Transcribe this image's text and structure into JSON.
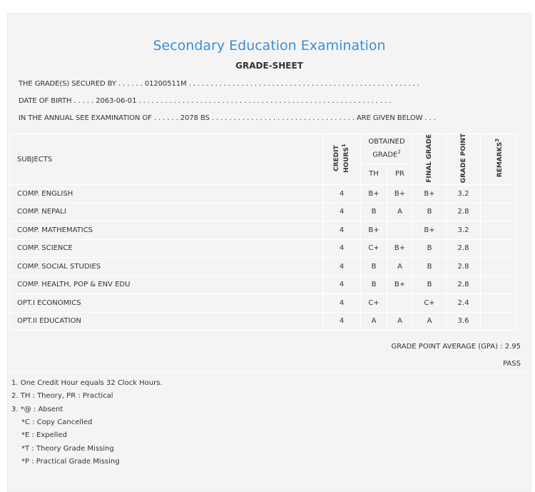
{
  "title": "Secondary Education Examination",
  "subtitle": "GRADE-SHEET",
  "info": {
    "line1": "THE GRADE(S) SECURED BY . . . . . . 01200511M . . . . . . . . . . . . . . . . . . . . . . . . . . . . . . . . . . . . . . . . . . . . . . . . . . . . .",
    "line2": "DATE OF BIRTH . . . . . 2063-06-01 . . . . . . . . . . . . . . . . . . . . . . . . . . . . . . . . . . . . . . . . . . . . . . . . . . . . . . . . . .",
    "line3": "IN THE ANNUAL SEE EXAMINATION OF . . . . . . 2078 BS . . . . . . . . . . . . . . . . . . . . . . . . . . . . . . . . . ARE GIVEN BELOW . . ."
  },
  "table": {
    "headers": {
      "subjects": "SUBJECTS",
      "credit": "CREDIT HOURS",
      "credit_sup": "1",
      "obtained": "OBTAINED GRADE",
      "obtained_sup": "2",
      "th": "TH",
      "pr": "PR",
      "final": "FINAL GRADE",
      "point": "GRADE POINT",
      "remarks": "REMARKS",
      "remarks_sup": "3"
    },
    "rows": [
      {
        "subject": "COMP. ENGLISH",
        "credit": "4",
        "th": "B+",
        "pr": "B+",
        "final": "B+",
        "point": "3.2",
        "remarks": ""
      },
      {
        "subject": "COMP. NEPALI",
        "credit": "4",
        "th": "B",
        "pr": "A",
        "final": "B",
        "point": "2.8",
        "remarks": ""
      },
      {
        "subject": "COMP. MATHEMATICS",
        "credit": "4",
        "th": "B+",
        "pr": "",
        "final": "B+",
        "point": "3.2",
        "remarks": ""
      },
      {
        "subject": "COMP. SCIENCE",
        "credit": "4",
        "th": "C+",
        "pr": "B+",
        "final": "B",
        "point": "2.8",
        "remarks": ""
      },
      {
        "subject": "COMP. SOCIAL STUDIES",
        "credit": "4",
        "th": "B",
        "pr": "A",
        "final": "B",
        "point": "2.8",
        "remarks": ""
      },
      {
        "subject": "COMP. HEALTH, POP & ENV EDU",
        "credit": "4",
        "th": "B",
        "pr": "B+",
        "final": "B",
        "point": "2.8",
        "remarks": ""
      },
      {
        "subject": "OPT.I ECONOMICS",
        "credit": "4",
        "th": "C+",
        "pr": "",
        "final": "C+",
        "point": "2.4",
        "remarks": ""
      },
      {
        "subject": "OPT.II EDUCATION",
        "credit": "4",
        "th": "A",
        "pr": "A",
        "final": "A",
        "point": "3.6",
        "remarks": ""
      }
    ]
  },
  "gpa": "GRADE POINT AVERAGE (GPA) : 2.95",
  "result": "PASS",
  "notes": [
    "1. One Credit Hour equals 32 Clock Hours.",
    "2. TH : Theory, PR : Practical",
    "3. *@ : Absent",
    "*C : Copy Cancelled",
    "*E : Expelled",
    "*T : Theory Grade Missing",
    "*P : Practical Grade Missing"
  ]
}
